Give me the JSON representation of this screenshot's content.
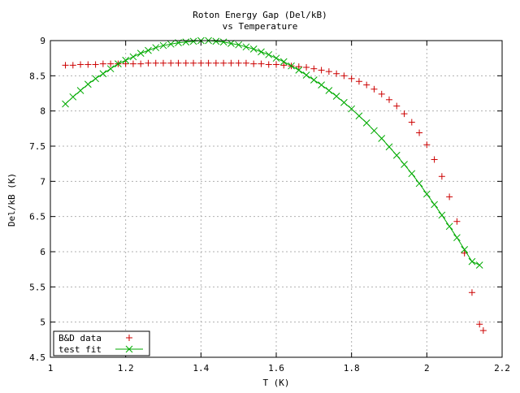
{
  "chart_data": {
    "type": "scatter",
    "title": "Roton Energy Gap (Del/kB)",
    "subtitle": "vs Temperature",
    "xlabel": "T (K)",
    "ylabel": "Del/kB (K)",
    "xlim": [
      1.0,
      2.2
    ],
    "ylim": [
      4.5,
      9.0
    ],
    "x_ticks": [
      1.0,
      1.2,
      1.4,
      1.6,
      1.8,
      2.0,
      2.2
    ],
    "x_tick_labels": [
      "1",
      "1.2",
      "1.4",
      "1.6",
      "1.8",
      "2",
      "2.2"
    ],
    "y_ticks": [
      4.5,
      5.0,
      5.5,
      6.0,
      6.5,
      7.0,
      7.5,
      8.0,
      8.5,
      9.0
    ],
    "y_tick_labels": [
      "4.5",
      "5",
      "5.5",
      "6",
      "6.5",
      "7",
      "7.5",
      "8",
      "8.5",
      "9"
    ],
    "grid": true,
    "legend_position": "bottom-left",
    "series": [
      {
        "name": "B&D data",
        "marker": "plus",
        "color": "#cc0000",
        "points": [
          [
            1.04,
            8.65
          ],
          [
            1.06,
            8.65
          ],
          [
            1.08,
            8.66
          ],
          [
            1.1,
            8.66
          ],
          [
            1.12,
            8.66
          ],
          [
            1.14,
            8.67
          ],
          [
            1.16,
            8.67
          ],
          [
            1.18,
            8.67
          ],
          [
            1.2,
            8.67
          ],
          [
            1.22,
            8.67
          ],
          [
            1.24,
            8.67
          ],
          [
            1.26,
            8.68
          ],
          [
            1.28,
            8.68
          ],
          [
            1.3,
            8.68
          ],
          [
            1.32,
            8.68
          ],
          [
            1.34,
            8.68
          ],
          [
            1.36,
            8.68
          ],
          [
            1.38,
            8.68
          ],
          [
            1.4,
            8.68
          ],
          [
            1.42,
            8.68
          ],
          [
            1.44,
            8.68
          ],
          [
            1.46,
            8.68
          ],
          [
            1.48,
            8.68
          ],
          [
            1.5,
            8.68
          ],
          [
            1.52,
            8.68
          ],
          [
            1.54,
            8.67
          ],
          [
            1.56,
            8.67
          ],
          [
            1.58,
            8.66
          ],
          [
            1.6,
            8.66
          ],
          [
            1.62,
            8.65
          ],
          [
            1.64,
            8.64
          ],
          [
            1.66,
            8.63
          ],
          [
            1.68,
            8.62
          ],
          [
            1.7,
            8.6
          ],
          [
            1.72,
            8.58
          ],
          [
            1.74,
            8.56
          ],
          [
            1.76,
            8.53
          ],
          [
            1.78,
            8.5
          ],
          [
            1.8,
            8.46
          ],
          [
            1.82,
            8.42
          ],
          [
            1.84,
            8.37
          ],
          [
            1.86,
            8.31
          ],
          [
            1.88,
            8.24
          ],
          [
            1.9,
            8.16
          ],
          [
            1.92,
            8.07
          ],
          [
            1.94,
            7.96
          ],
          [
            1.96,
            7.84
          ],
          [
            1.98,
            7.69
          ],
          [
            2.0,
            7.52
          ],
          [
            2.02,
            7.31
          ],
          [
            2.04,
            7.07
          ],
          [
            2.06,
            6.78
          ],
          [
            2.08,
            6.43
          ],
          [
            2.1,
            5.98
          ],
          [
            2.12,
            5.42
          ],
          [
            2.14,
            4.97
          ],
          [
            2.15,
            4.88
          ]
        ]
      },
      {
        "name": "test fit",
        "marker": "cross-line",
        "color": "#00aa00",
        "points": [
          [
            1.04,
            8.1
          ],
          [
            1.06,
            8.2
          ],
          [
            1.08,
            8.29
          ],
          [
            1.1,
            8.38
          ],
          [
            1.12,
            8.46
          ],
          [
            1.14,
            8.53
          ],
          [
            1.16,
            8.6
          ],
          [
            1.18,
            8.67
          ],
          [
            1.2,
            8.72
          ],
          [
            1.22,
            8.77
          ],
          [
            1.24,
            8.82
          ],
          [
            1.26,
            8.86
          ],
          [
            1.28,
            8.9
          ],
          [
            1.3,
            8.93
          ],
          [
            1.32,
            8.95
          ],
          [
            1.34,
            8.97
          ],
          [
            1.36,
            8.98
          ],
          [
            1.38,
            8.99
          ],
          [
            1.4,
            9.0
          ],
          [
            1.42,
            9.0
          ],
          [
            1.44,
            8.99
          ],
          [
            1.46,
            8.98
          ],
          [
            1.48,
            8.96
          ],
          [
            1.5,
            8.94
          ],
          [
            1.52,
            8.91
          ],
          [
            1.54,
            8.88
          ],
          [
            1.56,
            8.84
          ],
          [
            1.58,
            8.8
          ],
          [
            1.6,
            8.75
          ],
          [
            1.62,
            8.7
          ],
          [
            1.64,
            8.64
          ],
          [
            1.66,
            8.58
          ],
          [
            1.68,
            8.51
          ],
          [
            1.7,
            8.44
          ],
          [
            1.72,
            8.37
          ],
          [
            1.74,
            8.29
          ],
          [
            1.76,
            8.21
          ],
          [
            1.78,
            8.12
          ],
          [
            1.8,
            8.03
          ],
          [
            1.82,
            7.93
          ],
          [
            1.84,
            7.83
          ],
          [
            1.86,
            7.72
          ],
          [
            1.88,
            7.61
          ],
          [
            1.9,
            7.49
          ],
          [
            1.92,
            7.37
          ],
          [
            1.94,
            7.24
          ],
          [
            1.96,
            7.11
          ],
          [
            1.98,
            6.97
          ],
          [
            2.0,
            6.82
          ],
          [
            2.02,
            6.67
          ],
          [
            2.04,
            6.52
          ],
          [
            2.06,
            6.36
          ],
          [
            2.08,
            6.2
          ],
          [
            2.1,
            6.03
          ],
          [
            2.12,
            5.86
          ],
          [
            2.14,
            5.81
          ]
        ]
      }
    ]
  }
}
